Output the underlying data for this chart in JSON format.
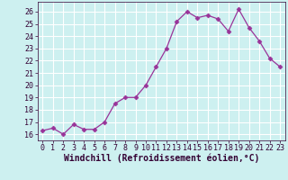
{
  "x": [
    0,
    1,
    2,
    3,
    4,
    5,
    6,
    7,
    8,
    9,
    10,
    11,
    12,
    13,
    14,
    15,
    16,
    17,
    18,
    19,
    20,
    21,
    22,
    23
  ],
  "y": [
    16.3,
    16.5,
    16.0,
    16.8,
    16.4,
    16.4,
    17.0,
    18.5,
    19.0,
    19.0,
    20.0,
    21.5,
    23.0,
    25.2,
    26.0,
    25.5,
    25.7,
    25.4,
    24.4,
    26.2,
    24.7,
    23.6,
    22.2,
    21.5
  ],
  "line_color": "#993399",
  "marker": "D",
  "markersize": 2.5,
  "linewidth": 0.9,
  "xlabel": "Windchill (Refroidissement éolien,°C)",
  "xlabel_fontsize": 7,
  "xlim": [
    -0.5,
    23.5
  ],
  "ylim": [
    15.5,
    26.8
  ],
  "yticks": [
    16,
    17,
    18,
    19,
    20,
    21,
    22,
    23,
    24,
    25,
    26
  ],
  "xticks": [
    0,
    1,
    2,
    3,
    4,
    5,
    6,
    7,
    8,
    9,
    10,
    11,
    12,
    13,
    14,
    15,
    16,
    17,
    18,
    19,
    20,
    21,
    22,
    23
  ],
  "background_color": "#cdf0f0",
  "grid_color": "#ffffff",
  "tick_fontsize": 6,
  "spine_color": "#330033"
}
